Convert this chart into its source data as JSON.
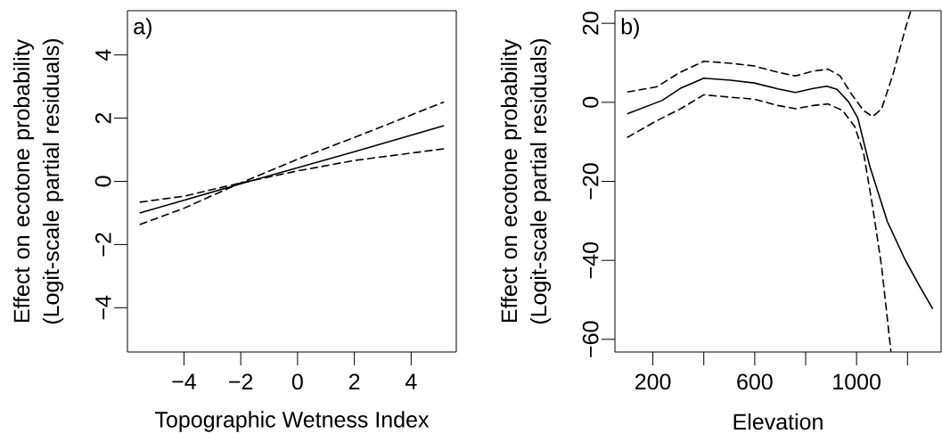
{
  "chart_data": [
    {
      "type": "line",
      "xlabel": "Topographic Wetness Index",
      "ylabel": "Effect on ecotone probability (Logit-scale partial residuals)",
      "annotations": [
        "a)"
      ],
      "xlim": [
        -5.99,
        5.59
      ],
      "ylim": [
        -5.4,
        5.4
      ],
      "xticks": [
        {
          "value": -4,
          "label": "−4"
        },
        {
          "value": -2,
          "label": "−2"
        },
        0,
        2,
        4
      ],
      "yticks": [
        {
          "value": -4,
          "label": "−4"
        },
        {
          "value": -2,
          "label": "−2"
        },
        0,
        2,
        4
      ],
      "series": [
        {
          "color": "#000000",
          "line_style": "solid",
          "x": [
            -5.56,
            -4,
            -2,
            0,
            2,
            5.16
          ],
          "values": [
            -1.0,
            -0.6,
            -0.08,
            0.43,
            0.94,
            1.76
          ]
        },
        {
          "color": "#000000",
          "line_style": "dashed",
          "x": [
            -5.56,
            -4,
            -2,
            0,
            2,
            5.16
          ],
          "values": [
            -1.37,
            -0.85,
            -0.05,
            0.7,
            1.39,
            2.51
          ]
        },
        {
          "color": "#000000",
          "line_style": "dashed",
          "x": [
            -5.56,
            -4,
            -2,
            0,
            2,
            5.16
          ],
          "values": [
            -0.66,
            -0.47,
            -0.05,
            0.33,
            0.66,
            1.03
          ]
        }
      ]
    },
    {
      "type": "line",
      "xlabel": "Elevation",
      "ylabel": "Effect on ecotone probability (Logit-scale partial residuals)",
      "annotations": [
        "b)"
      ],
      "xlim": [
        51,
        1332
      ],
      "ylim": [
        -63.2,
        23.2
      ],
      "xticks": [
        200,
        {
          "value": 400,
          "label": null
        },
        600,
        {
          "value": 800,
          "label": null
        },
        1000,
        {
          "value": 1200,
          "label": null
        }
      ],
      "yticks": [
        {
          "value": -60,
          "label": "−60"
        },
        {
          "value": -40,
          "label": "−40"
        },
        {
          "value": -20,
          "label": "−20"
        },
        0,
        20
      ],
      "series": [
        {
          "color": "#000000",
          "line_style": "solid",
          "x": [
            99,
            237,
            307,
            400,
            505,
            598,
            691,
            760,
            830,
            883,
            923,
            969,
            1005,
            1051,
            1121,
            1191,
            1249,
            1299
          ],
          "values": [
            -2.9,
            0.5,
            3.5,
            6.1,
            5.6,
            4.9,
            3.4,
            2.5,
            3.5,
            4.1,
            3.3,
            0.1,
            -4.0,
            -16,
            -30.2,
            -39.9,
            -46.7,
            -52.3
          ]
        },
        {
          "color": "#000000",
          "line_style": "dashed",
          "x": [
            99,
            214,
            307,
            400,
            505,
            598,
            691,
            760,
            830,
            888,
            935,
            981,
            1028,
            1063,
            1098,
            1144,
            1191,
            1212
          ],
          "values": [
            2.6,
            3.9,
            7.6,
            10.4,
            9.9,
            9.2,
            7.6,
            6.7,
            7.9,
            8.4,
            6.7,
            2.0,
            -2.1,
            -3.6,
            -1.7,
            7.3,
            18.5,
            23.0
          ]
        },
        {
          "color": "#000000",
          "line_style": "dashed",
          "x": [
            99,
            214,
            307,
            400,
            505,
            598,
            691,
            760,
            830,
            888,
            946,
            993,
            1028,
            1063,
            1098,
            1135
          ],
          "values": [
            -8.9,
            -4.7,
            -1.7,
            1.9,
            1.3,
            0.8,
            -0.8,
            -1.6,
            -0.8,
            -0.4,
            -2.1,
            -6.2,
            -13,
            -26.4,
            -41.4,
            -63.1
          ]
        }
      ]
    }
  ]
}
